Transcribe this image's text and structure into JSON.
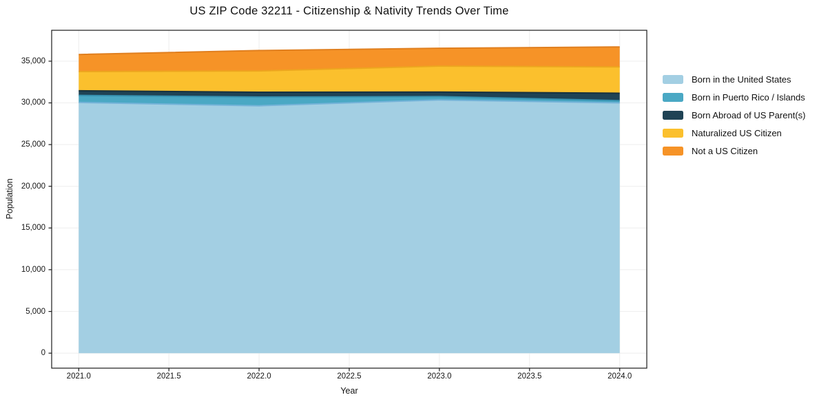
{
  "figure": {
    "title": "US ZIP Code 32211 - Citizenship & Nativity Trends Over Time"
  },
  "chart_data": {
    "type": "area",
    "stacked": true,
    "title": "US ZIP Code 32211 - Citizenship & Nativity Trends Over Time",
    "xlabel": "Year",
    "ylabel": "Population",
    "x": [
      2021,
      2022,
      2023,
      2024
    ],
    "series": [
      {
        "name": "Born in the United States",
        "color": "#a3cfe3",
        "edge": "#74b3d8",
        "values": [
          30050,
          29650,
          30350,
          30000
        ]
      },
      {
        "name": "Born in Puerto Rico / Islands",
        "color": "#4aa8c4",
        "edge": "#3691b0",
        "values": [
          850,
          1050,
          400,
          270
        ]
      },
      {
        "name": "Born Abroad of US Parent(s)",
        "color": "#1f4355",
        "edge": "#16313f",
        "values": [
          550,
          575,
          550,
          880
        ]
      },
      {
        "name": "Naturalized US Citizen",
        "color": "#fbc02d",
        "edge": "#eda61f",
        "values": [
          2300,
          2550,
          3100,
          3150
        ]
      },
      {
        "name": "Not a US Citizen",
        "color": "#f69327",
        "edge": "#e07f1f",
        "values": [
          2050,
          2450,
          2150,
          2400
        ]
      }
    ],
    "totals": [
      35800,
      36275,
      36550,
      36700
    ],
    "xlim": [
      2020.85,
      2024.15
    ],
    "ylim": [
      -1800,
      38700
    ],
    "x_ticks": [
      {
        "v": 2021.0,
        "label": "2021.0"
      },
      {
        "v": 2021.5,
        "label": "2021.5"
      },
      {
        "v": 2022.0,
        "label": "2022.0"
      },
      {
        "v": 2022.5,
        "label": "2022.5"
      },
      {
        "v": 2023.0,
        "label": "2023.0"
      },
      {
        "v": 2023.5,
        "label": "2023.5"
      },
      {
        "v": 2024.0,
        "label": "2024.0"
      }
    ],
    "y_ticks": [
      {
        "v": 0,
        "label": "0"
      },
      {
        "v": 5000,
        "label": "5,000"
      },
      {
        "v": 10000,
        "label": "10,000"
      },
      {
        "v": 15000,
        "label": "15,000"
      },
      {
        "v": 20000,
        "label": "20,000"
      },
      {
        "v": 25000,
        "label": "25,000"
      },
      {
        "v": 30000,
        "label": "30,000"
      },
      {
        "v": 35000,
        "label": "35,000"
      }
    ],
    "grid": true,
    "grid_color": "#ededed",
    "axis_color": "#1a1a1a",
    "legend_position": "right"
  }
}
